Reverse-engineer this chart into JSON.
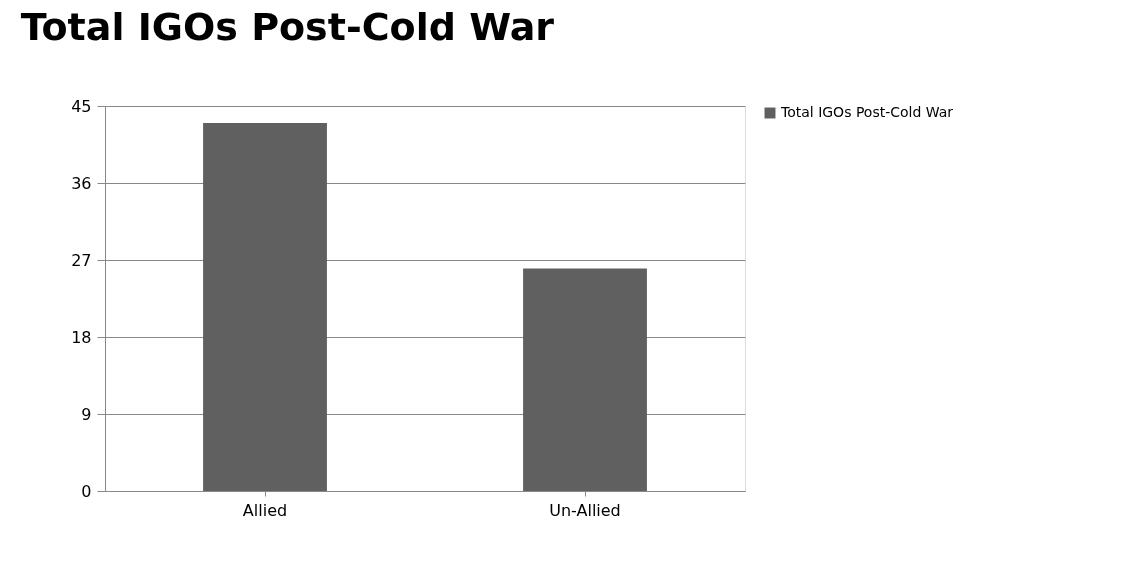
{
  "chart_data": {
    "type": "bar",
    "title": "Total IGOs Post-Cold War",
    "categories": [
      "Allied",
      "Un-Allied"
    ],
    "series": [
      {
        "name": "Total IGOs Post-Cold War",
        "color": "#606060",
        "values": [
          43,
          26
        ]
      }
    ],
    "ylim": [
      0,
      45
    ],
    "yticks": [
      0,
      9,
      18,
      27,
      36,
      45
    ],
    "grid": "y",
    "legend": "right"
  }
}
